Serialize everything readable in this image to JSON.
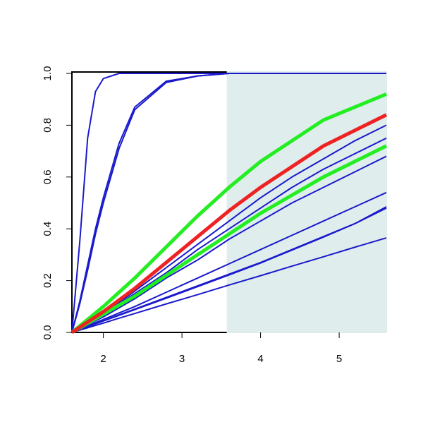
{
  "chart_data": {
    "type": "line",
    "x": [
      1.6,
      1.7,
      1.8,
      1.9,
      2.0,
      2.2,
      2.4,
      2.8,
      3.2,
      3.6,
      4.0,
      4.4,
      4.8,
      5.2,
      5.6
    ],
    "series": [
      {
        "color": "#1a1acc",
        "width": 2,
        "values": [
          0,
          0.35,
          0.75,
          0.93,
          0.98,
          1,
          1,
          1,
          1,
          1,
          1,
          1,
          1,
          1,
          1
        ]
      },
      {
        "color": "#1a1acc",
        "width": 2,
        "values": [
          0,
          0.12,
          0.26,
          0.4,
          0.52,
          0.73,
          0.87,
          0.97,
          0.99,
          1,
          1,
          1,
          1,
          1,
          1
        ]
      },
      {
        "color": "#1a1acc",
        "width": 2,
        "values": [
          0,
          0.11,
          0.24,
          0.38,
          0.5,
          0.71,
          0.86,
          0.965,
          0.99,
          1,
          1,
          1,
          1,
          1,
          1
        ]
      },
      {
        "color": "#1a1acc",
        "width": 2,
        "values": [
          0,
          0.018,
          0.035,
          0.053,
          0.07,
          0.115,
          0.16,
          0.25,
          0.34,
          0.43,
          0.52,
          0.6,
          0.67,
          0.74,
          0.8
        ]
      },
      {
        "color": "#1a1acc",
        "width": 2,
        "values": [
          0,
          0.018,
          0.035,
          0.053,
          0.07,
          0.11,
          0.15,
          0.23,
          0.32,
          0.4,
          0.48,
          0.56,
          0.63,
          0.69,
          0.75
        ]
      },
      {
        "color": "#1a1acc",
        "width": 2,
        "values": [
          0,
          0.015,
          0.03,
          0.045,
          0.06,
          0.095,
          0.13,
          0.21,
          0.28,
          0.36,
          0.43,
          0.5,
          0.56,
          0.62,
          0.68
        ]
      },
      {
        "color": "#1a1acc",
        "width": 2,
        "values": [
          0,
          0.013,
          0.025,
          0.038,
          0.05,
          0.075,
          0.1,
          0.155,
          0.21,
          0.265,
          0.32,
          0.375,
          0.43,
          0.485,
          0.54
        ]
      },
      {
        "color": "#1a1acc",
        "width": 2,
        "values": [
          0,
          0.011,
          0.023,
          0.034,
          0.045,
          0.068,
          0.09,
          0.135,
          0.18,
          0.225,
          0.27,
          0.32,
          0.37,
          0.42,
          0.48
        ]
      },
      {
        "color": "#1a1acc",
        "width": 2,
        "values": [
          0,
          0.011,
          0.022,
          0.033,
          0.044,
          0.066,
          0.088,
          0.132,
          0.177,
          0.222,
          0.268,
          0.318,
          0.368,
          0.42,
          0.485
        ]
      },
      {
        "color": "#1a1acc",
        "width": 2,
        "values": [
          0,
          0.009,
          0.018,
          0.027,
          0.036,
          0.055,
          0.073,
          0.11,
          0.146,
          0.183,
          0.219,
          0.256,
          0.292,
          0.329,
          0.365
        ]
      },
      {
        "color": "#22ee22",
        "width": 5,
        "values": [
          0,
          0.018,
          0.035,
          0.053,
          0.07,
          0.105,
          0.14,
          0.22,
          0.3,
          0.38,
          0.46,
          0.53,
          0.6,
          0.66,
          0.72
        ]
      },
      {
        "color": "#22ee22",
        "width": 5,
        "values": [
          0,
          0.025,
          0.05,
          0.075,
          0.1,
          0.155,
          0.21,
          0.33,
          0.45,
          0.56,
          0.66,
          0.74,
          0.82,
          0.87,
          0.92
        ]
      },
      {
        "color": "#ee2222",
        "width": 5,
        "values": [
          0,
          0.02,
          0.04,
          0.06,
          0.08,
          0.125,
          0.17,
          0.27,
          0.37,
          0.47,
          0.56,
          0.64,
          0.72,
          0.78,
          0.84
        ]
      }
    ],
    "xlim": [
      1.6,
      5.6
    ],
    "xticks": [
      2,
      3,
      4,
      5
    ],
    "ylim": [
      0,
      1
    ],
    "yticks": [
      {
        "value": 0,
        "label": "0.0"
      },
      0.2,
      0.4,
      0.6,
      0.8,
      {
        "value": 1,
        "label": "1.0"
      }
    ],
    "shade_from": 3.57,
    "shade_color": "#e0eded"
  }
}
